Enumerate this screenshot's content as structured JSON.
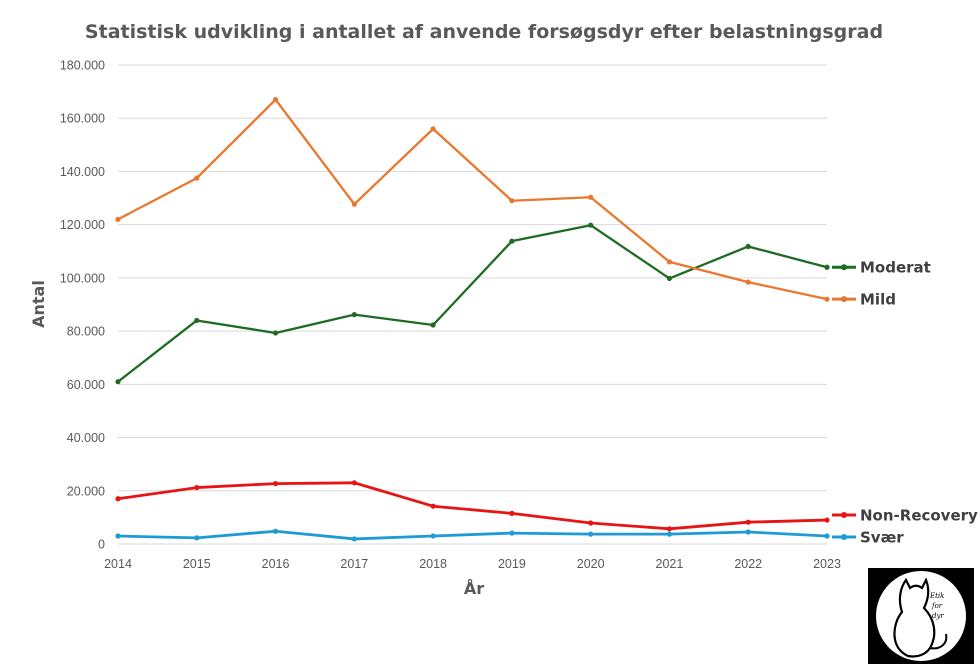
{
  "chart_data": {
    "type": "line",
    "title": "Statistisk udvikling i antallet af anvende forsøgsdyr efter belastningsgrad",
    "xlabel": "År",
    "ylabel": "Antal",
    "ylim": [
      0,
      180000
    ],
    "y_ticks": [
      "0",
      "20.000",
      "40.000",
      "60.000",
      "80.000",
      "100.000",
      "120.000",
      "140.000",
      "160.000",
      "180.000"
    ],
    "x": [
      "2014",
      "2015",
      "2016",
      "2017",
      "2018",
      "2019",
      "2020",
      "2021",
      "2022",
      "2023"
    ],
    "grid": true,
    "legend_placement": "right, next to line ends",
    "series": [
      {
        "name": "Moderat",
        "color": "#1e6b23",
        "values": [
          61000,
          84000,
          79300,
          86200,
          82300,
          113800,
          119800,
          99800,
          111800,
          104000
        ]
      },
      {
        "name": "Mild",
        "color": "#e8782e",
        "values": [
          122000,
          137500,
          167000,
          127700,
          156000,
          129000,
          130300,
          106000,
          98400,
          92000
        ]
      },
      {
        "name": "Non-Recovery",
        "color": "#e81313",
        "values": [
          17000,
          21200,
          22700,
          23000,
          14200,
          11500,
          7900,
          5700,
          8200,
          9000
        ]
      },
      {
        "name": "Svær",
        "color": "#1e9bd7",
        "values": [
          3000,
          2300,
          4800,
          1900,
          3000,
          4100,
          3700,
          3700,
          4500,
          3000
        ]
      }
    ]
  },
  "logo": {
    "text": "Etik for dyr"
  }
}
